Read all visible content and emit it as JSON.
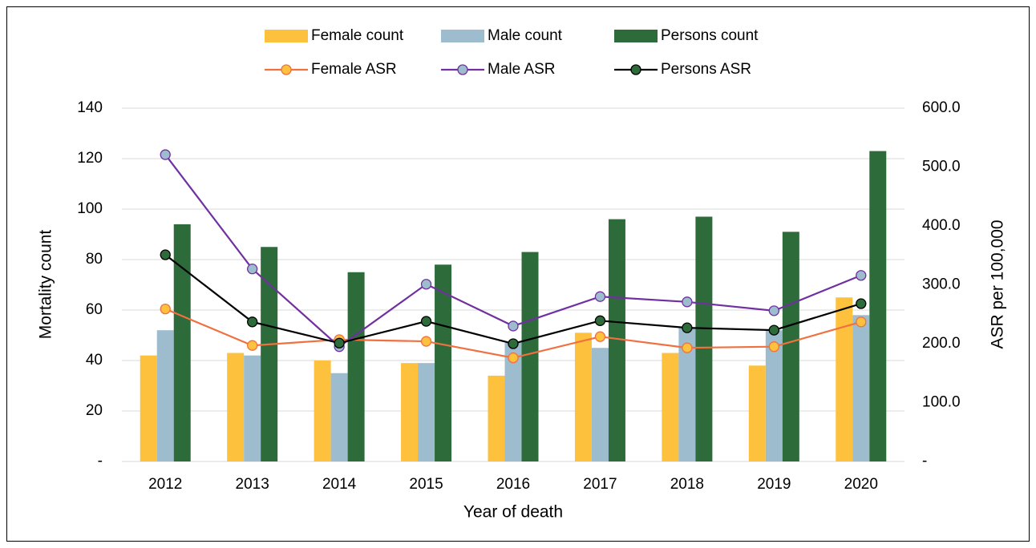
{
  "chart_data": {
    "type": "bar",
    "x_label": "Year of death",
    "y_label": "Mortality count",
    "y2_label": "ASR per 100,000",
    "categories": [
      "2012",
      "2013",
      "2014",
      "2015",
      "2016",
      "2017",
      "2018",
      "2019",
      "2020"
    ],
    "series": [
      {
        "name": "Female count",
        "type": "bar",
        "color": "#fdc13e",
        "values": [
          42,
          43,
          40,
          39,
          34,
          51,
          43,
          38,
          65
        ]
      },
      {
        "name": "Male count",
        "type": "bar",
        "color": "#9dbcce",
        "values": [
          52,
          42,
          35,
          39,
          47,
          45,
          53,
          52,
          58
        ]
      },
      {
        "name": "Persons count",
        "type": "bar",
        "color": "#2e6b3a",
        "values": [
          94,
          85,
          75,
          78,
          83,
          96,
          97,
          91,
          123
        ]
      },
      {
        "name": "Female ASR",
        "type": "line",
        "axis": "y2",
        "color": "#f07040",
        "marker_color": "#fdc13e",
        "values": [
          259,
          197,
          207,
          204,
          176,
          212,
          193,
          195,
          237
        ]
      },
      {
        "name": "Male ASR",
        "type": "line",
        "axis": "y2",
        "color": "#7030a0",
        "marker_color": "#9dbcce",
        "values": [
          521,
          327,
          195,
          301,
          230,
          280,
          271,
          256,
          316
        ]
      },
      {
        "name": "Persons ASR",
        "type": "line",
        "axis": "y2",
        "color": "#000000",
        "marker_color": "#2e6b3a",
        "values": [
          351,
          237,
          201,
          238,
          200,
          239,
          227,
          223,
          268
        ]
      }
    ],
    "ylim": [
      0,
      140
    ],
    "yticks": [
      {
        "value": 0,
        "label": "-"
      },
      20,
      40,
      60,
      80,
      100,
      120,
      140
    ],
    "y2lim": [
      0,
      600
    ],
    "y2ticks": [
      {
        "value": 0,
        "label": "-"
      },
      {
        "value": 100,
        "label": "100.0"
      },
      {
        "value": 200,
        "label": "200.0"
      },
      {
        "value": 300,
        "label": "300.0"
      },
      {
        "value": 400,
        "label": "400.0"
      },
      {
        "value": 500,
        "label": "500.0"
      },
      {
        "value": 600,
        "label": "600.0"
      }
    ],
    "grid": true,
    "legend": "top"
  }
}
